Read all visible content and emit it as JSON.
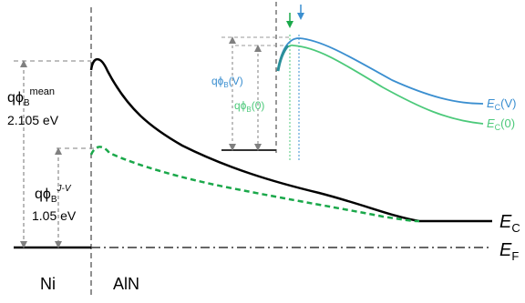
{
  "diagram": {
    "labels": {
      "metal": "Ni",
      "semiconductor": "AlN",
      "ec_main": "E",
      "ec_main_sub": "C",
      "ef_main": "E",
      "ef_main_sub": "F",
      "barrier_mean_base": "qϕ",
      "barrier_mean_sub": "B",
      "barrier_mean_sup": "mean",
      "barrier_mean_value": "2.105 eV",
      "barrier_jv_base": "qϕ",
      "barrier_jv_sub": "B",
      "barrier_jv_sup": "J-V",
      "barrier_jv_value": "1.05 eV"
    },
    "inset": {
      "barrier_v_base": "qϕ",
      "barrier_v_sub": "B",
      "barrier_v_arg": "(V)",
      "barrier_0_base": "qϕ",
      "barrier_0_sub": "B",
      "barrier_0_arg": "(0)",
      "ec_v_base": "E",
      "ec_v_sub": "C",
      "ec_v_arg": "(V)",
      "ec_0_base": "E",
      "ec_0_sub": "C",
      "ec_0_arg": "(0)"
    },
    "colors": {
      "main_band": "#000000",
      "jv_band": "#1aa84a",
      "inset_v": "#3b8fd0",
      "inset_0": "#4cc97a",
      "guide": "#808080",
      "fermi": "#333333"
    }
  }
}
